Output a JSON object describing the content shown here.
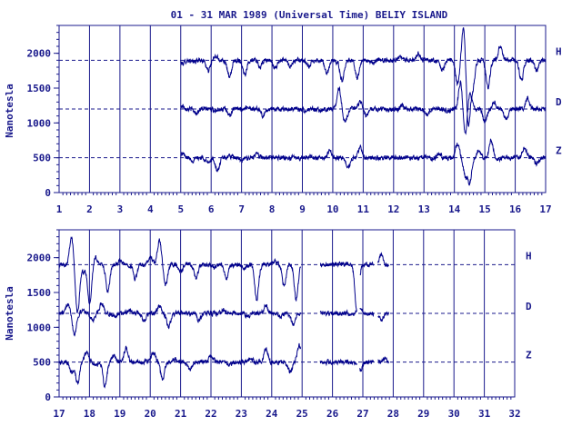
{
  "chart_data": [
    {
      "type": "line",
      "title": "01 - 31 MAR 1989 (Universal Time) BELIY ISLAND",
      "ylabel": "Nanotesla",
      "xlim": [
        1,
        17
      ],
      "ylim": [
        0,
        2400
      ],
      "x_tick_labels": [
        "1",
        "2",
        "3",
        "4",
        "5",
        "6",
        "7",
        "8",
        "9",
        "10",
        "11",
        "12",
        "13",
        "14",
        "15",
        "16",
        "17"
      ],
      "y_tick_labels": [
        "0",
        "500",
        "1000",
        "1500",
        "2000"
      ],
      "grid": true,
      "series": [
        {
          "name": "H",
          "baseline": 1900,
          "color": "#00008b",
          "segments": [
            [
              5.0,
              17.0
            ]
          ],
          "excursions": [
            [
              5.05,
              1850
            ],
            [
              5.4,
              1870
            ],
            [
              5.9,
              1750
            ],
            [
              6.15,
              1950
            ],
            [
              6.6,
              1650
            ],
            [
              7.1,
              1700
            ],
            [
              7.6,
              1800
            ],
            [
              8.1,
              1780
            ],
            [
              8.6,
              1820
            ],
            [
              9.2,
              1800
            ],
            [
              9.8,
              1700
            ],
            [
              10.1,
              1880
            ],
            [
              10.3,
              1600
            ],
            [
              10.8,
              1650
            ],
            [
              11.3,
              1850
            ],
            [
              12.2,
              1950
            ],
            [
              12.8,
              2000
            ],
            [
              13.6,
              1750
            ],
            [
              14.1,
              1550
            ],
            [
              14.3,
              2400
            ],
            [
              14.45,
              950
            ],
            [
              14.6,
              1500
            ],
            [
              15.1,
              1500
            ],
            [
              15.5,
              2100
            ],
            [
              16.2,
              1600
            ],
            [
              16.7,
              1750
            ]
          ]
        },
        {
          "name": "D",
          "baseline": 1200,
          "color": "#00008b",
          "segments": [
            [
              5.0,
              17.0
            ]
          ],
          "excursions": [
            [
              5.05,
              1250
            ],
            [
              5.5,
              1140
            ],
            [
              6.1,
              1180
            ],
            [
              6.6,
              1110
            ],
            [
              7.2,
              1230
            ],
            [
              7.7,
              1100
            ],
            [
              8.3,
              1200
            ],
            [
              9.1,
              1170
            ],
            [
              9.6,
              1180
            ],
            [
              10.2,
              1500
            ],
            [
              10.4,
              1000
            ],
            [
              10.9,
              1300
            ],
            [
              11.1,
              1100
            ],
            [
              12.3,
              1250
            ],
            [
              13.1,
              1100
            ],
            [
              13.8,
              1150
            ],
            [
              14.2,
              1600
            ],
            [
              14.35,
              800
            ],
            [
              14.5,
              1450
            ],
            [
              15.0,
              1000
            ],
            [
              15.3,
              1300
            ],
            [
              15.7,
              1050
            ],
            [
              16.4,
              1350
            ]
          ]
        },
        {
          "name": "Z",
          "baseline": 500,
          "color": "#00008b",
          "segments": [
            [
              5.0,
              17.0
            ]
          ],
          "excursions": [
            [
              5.05,
              560
            ],
            [
              5.4,
              460
            ],
            [
              5.9,
              420
            ],
            [
              6.2,
              300
            ],
            [
              6.6,
              520
            ],
            [
              7.0,
              450
            ],
            [
              7.5,
              550
            ],
            [
              8.2,
              500
            ],
            [
              9.2,
              520
            ],
            [
              9.9,
              600
            ],
            [
              10.5,
              350
            ],
            [
              10.9,
              650
            ],
            [
              11.4,
              480
            ],
            [
              12.4,
              520
            ],
            [
              13.5,
              560
            ],
            [
              14.1,
              700
            ],
            [
              14.35,
              250
            ],
            [
              14.5,
              150
            ],
            [
              14.8,
              600
            ],
            [
              15.2,
              750
            ],
            [
              15.5,
              480
            ],
            [
              16.3,
              650
            ],
            [
              16.7,
              420
            ]
          ]
        }
      ],
      "series_labels": [
        "H",
        "D",
        "Z"
      ]
    },
    {
      "type": "line",
      "ylabel": "Nanotesla",
      "xlim": [
        17,
        32
      ],
      "ylim": [
        0,
        2400
      ],
      "x_tick_labels": [
        "17",
        "18",
        "19",
        "20",
        "21",
        "22",
        "23",
        "24",
        "25",
        "26",
        "27",
        "28",
        "29",
        "30",
        "31",
        "32"
      ],
      "y_tick_labels": [
        "0",
        "500",
        "1000",
        "1500",
        "2000"
      ],
      "grid": true,
      "series": [
        {
          "name": "H",
          "baseline": 1900,
          "color": "#00008b",
          "segments": [
            [
              17.0,
              24.95
            ],
            [
              25.6,
              26.8
            ],
            [
              26.9,
              27.35
            ],
            [
              27.5,
              27.85
            ]
          ],
          "excursions": [
            [
              17.4,
              2300
            ],
            [
              17.6,
              1200
            ],
            [
              17.8,
              1800
            ],
            [
              18.0,
              1350
            ],
            [
              18.2,
              2000
            ],
            [
              18.6,
              1500
            ],
            [
              19.0,
              1950
            ],
            [
              19.5,
              1700
            ],
            [
              20.0,
              2000
            ],
            [
              20.3,
              2250
            ],
            [
              20.5,
              1600
            ],
            [
              21.0,
              1800
            ],
            [
              21.5,
              1700
            ],
            [
              22.1,
              1850
            ],
            [
              22.5,
              1700
            ],
            [
              23.1,
              1850
            ],
            [
              23.5,
              1400
            ],
            [
              24.1,
              1950
            ],
            [
              24.4,
              1600
            ],
            [
              24.8,
              1400
            ],
            [
              26.8,
              1200
            ],
            [
              27.6,
              2050
            ]
          ]
        },
        {
          "name": "D",
          "baseline": 1200,
          "color": "#00008b",
          "segments": [
            [
              17.0,
              24.95
            ],
            [
              25.6,
              26.8
            ],
            [
              26.9,
              27.35
            ],
            [
              27.5,
              27.85
            ]
          ],
          "excursions": [
            [
              17.3,
              1350
            ],
            [
              17.5,
              900
            ],
            [
              17.8,
              1250
            ],
            [
              18.1,
              1100
            ],
            [
              18.4,
              1350
            ],
            [
              18.8,
              1150
            ],
            [
              19.3,
              1250
            ],
            [
              19.8,
              1100
            ],
            [
              20.3,
              1300
            ],
            [
              20.6,
              1000
            ],
            [
              21.1,
              1200
            ],
            [
              21.6,
              1100
            ],
            [
              22.4,
              1250
            ],
            [
              23.2,
              1150
            ],
            [
              23.8,
              1300
            ],
            [
              24.3,
              1150
            ],
            [
              24.7,
              1050
            ],
            [
              26.9,
              1300
            ],
            [
              27.6,
              1100
            ]
          ]
        },
        {
          "name": "Z",
          "baseline": 500,
          "color": "#00008b",
          "segments": [
            [
              17.0,
              24.95
            ],
            [
              25.6,
              26.8
            ],
            [
              26.9,
              27.35
            ],
            [
              27.5,
              27.85
            ]
          ],
          "excursions": [
            [
              17.4,
              350
            ],
            [
              17.6,
              200
            ],
            [
              17.9,
              650
            ],
            [
              18.2,
              450
            ],
            [
              18.5,
              150
            ],
            [
              18.8,
              600
            ],
            [
              19.2,
              700
            ],
            [
              19.6,
              500
            ],
            [
              20.1,
              650
            ],
            [
              20.4,
              250
            ],
            [
              20.8,
              550
            ],
            [
              21.3,
              400
            ],
            [
              22.0,
              600
            ],
            [
              22.6,
              450
            ],
            [
              23.3,
              550
            ],
            [
              23.8,
              700
            ],
            [
              24.2,
              500
            ],
            [
              24.6,
              350
            ],
            [
              24.9,
              750
            ],
            [
              26.9,
              350
            ],
            [
              27.7,
              550
            ]
          ]
        }
      ],
      "series_labels": [
        "H",
        "D",
        "Z"
      ]
    }
  ]
}
